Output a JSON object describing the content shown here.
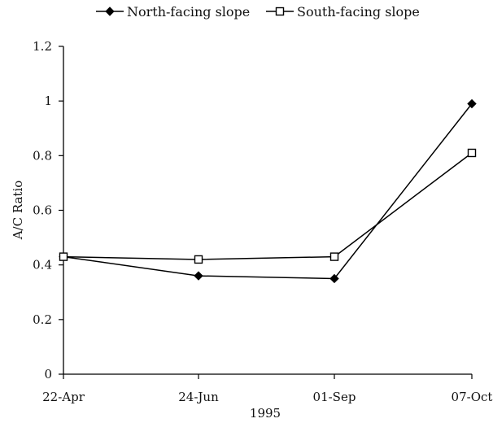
{
  "chart_data": {
    "type": "line",
    "title": "",
    "xlabel": "1995",
    "ylabel": "A/C Ratio",
    "categories": [
      "22-Apr",
      "24-Jun",
      "01-Sep",
      "07-Oct"
    ],
    "ylim": [
      0,
      1.2
    ],
    "yticks": [
      "0",
      "0.2",
      "0.4",
      "0.6",
      "0.8",
      "1",
      "1.2"
    ],
    "grid": false,
    "legend_position": "top",
    "series": [
      {
        "name": "North-facing slope",
        "marker": "filled-diamond",
        "color": "#000000",
        "values": [
          0.43,
          0.36,
          0.35,
          0.99
        ]
      },
      {
        "name": "South-facing slope",
        "marker": "open-square",
        "color": "#000000",
        "values": [
          0.43,
          0.42,
          0.43,
          0.81
        ]
      }
    ]
  }
}
